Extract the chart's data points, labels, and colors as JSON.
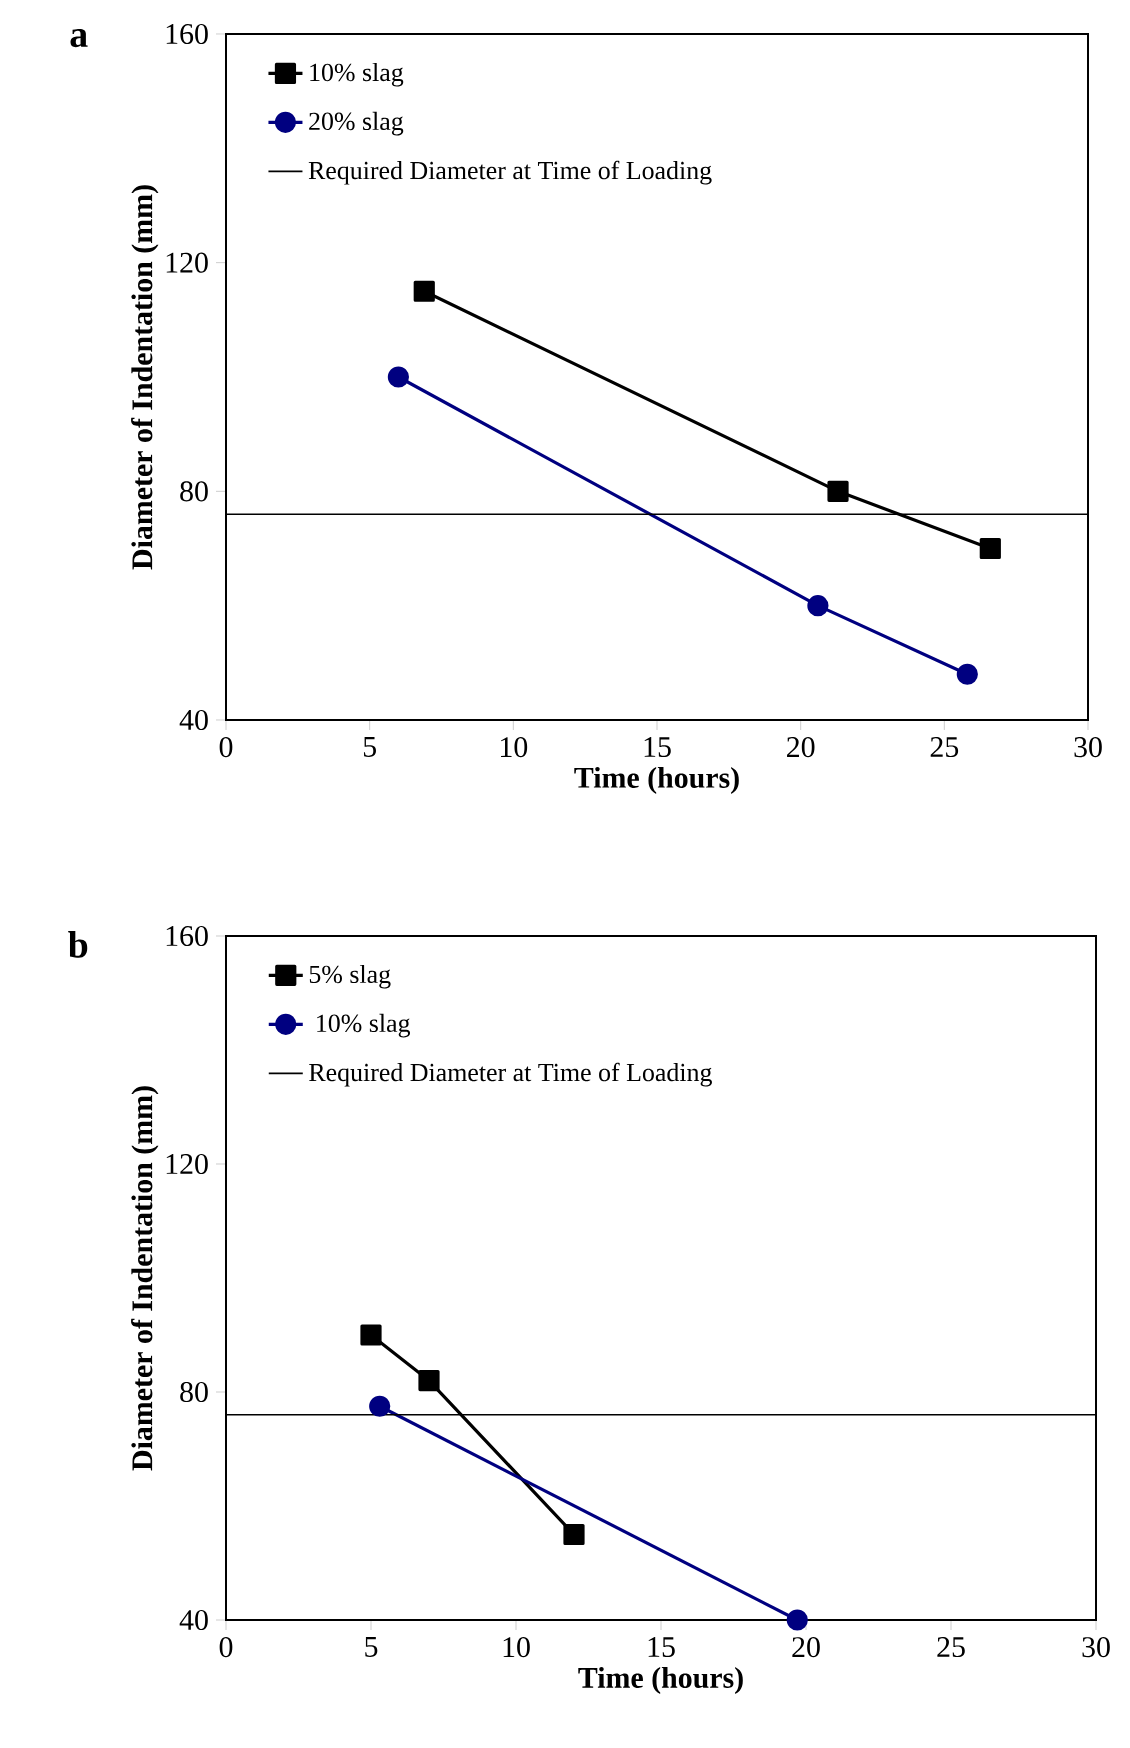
{
  "chart_data": [
    {
      "type": "line",
      "title": "a",
      "xlabel": "Time (hours)",
      "ylabel": "Diameter of Indentation (mm)",
      "xlim": [
        0,
        30
      ],
      "xticks": [
        0,
        5,
        10,
        15,
        20,
        25,
        30
      ],
      "ylim": [
        40,
        160
      ],
      "yticks": [
        40,
        80,
        120,
        160
      ],
      "legend": "top left",
      "series": [
        {
          "name": "10% slag",
          "color": "#000000",
          "marker": "square",
          "x": [
            6.9,
            21.3,
            26.6
          ],
          "values": [
            115,
            80,
            70
          ]
        },
        {
          "name": "20% slag",
          "color": "#000080",
          "marker": "circle",
          "x": [
            6.0,
            20.6,
            25.8
          ],
          "values": [
            100,
            60,
            48
          ]
        }
      ],
      "ref_lines": [
        {
          "axis": "y",
          "value": 76,
          "label": "Required Diameter at Time of Loading",
          "color": "#000000"
        }
      ]
    },
    {
      "type": "line",
      "title": "b",
      "xlabel": "Time (hours)",
      "ylabel": "Diameter of Indentation (mm)",
      "xlim": [
        0,
        30
      ],
      "xticks": [
        0,
        5,
        10,
        15,
        20,
        25,
        30
      ],
      "ylim": [
        40,
        160
      ],
      "yticks": [
        40,
        80,
        120,
        160
      ],
      "legend": "top left",
      "series": [
        {
          "name": "5% slag",
          "color": "#000000",
          "marker": "square",
          "x": [
            5.0,
            7.0,
            12.0
          ],
          "values": [
            90,
            82,
            55
          ]
        },
        {
          "name": " 10% slag",
          "color": "#000080",
          "marker": "circle",
          "x": [
            5.3,
            19.7
          ],
          "values": [
            77.5,
            40
          ]
        }
      ],
      "ref_lines": [
        {
          "axis": "y",
          "value": 76,
          "label": "Required Diameter at Time of Loading",
          "color": "#000000"
        }
      ]
    }
  ]
}
